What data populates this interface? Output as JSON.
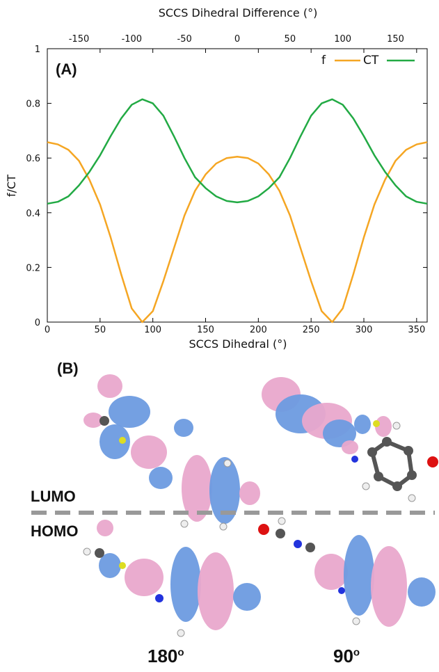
{
  "chart_data": {
    "type": "line",
    "panel_label": "(A)",
    "xlabel": "SCCS Dihedral (°)",
    "x2label": "SCCS Dihedral Difference (°)",
    "ylabel": "f/CT",
    "xlim": [
      0,
      360
    ],
    "x2lim": [
      -180,
      180
    ],
    "ylim": [
      0,
      1
    ],
    "xticks": [
      0,
      50,
      100,
      150,
      200,
      250,
      300,
      350
    ],
    "x2ticks": [
      -150,
      -100,
      -50,
      0,
      50,
      100,
      150
    ],
    "yticks": [
      0,
      0.2,
      0.4,
      0.6,
      0.8,
      1
    ],
    "ytick_labels": [
      "0",
      "0.2",
      "0.4",
      "0.6",
      "0.8",
      "1"
    ],
    "grid": false,
    "legend_position": "top-right",
    "series": [
      {
        "name": "f",
        "color": "#f5a623",
        "x": [
          0,
          10,
          20,
          30,
          40,
          50,
          60,
          70,
          80,
          90,
          100,
          110,
          120,
          130,
          140,
          150,
          160,
          170,
          180,
          190,
          200,
          210,
          220,
          230,
          240,
          250,
          260,
          270,
          280,
          290,
          300,
          310,
          320,
          330,
          340,
          350,
          360
        ],
        "y": [
          0.658,
          0.65,
          0.63,
          0.59,
          0.52,
          0.43,
          0.31,
          0.175,
          0.05,
          0.0,
          0.04,
          0.15,
          0.27,
          0.39,
          0.48,
          0.54,
          0.58,
          0.6,
          0.605,
          0.6,
          0.58,
          0.54,
          0.48,
          0.39,
          0.27,
          0.15,
          0.04,
          0.0,
          0.05,
          0.175,
          0.31,
          0.43,
          0.52,
          0.59,
          0.63,
          0.65,
          0.658
        ]
      },
      {
        "name": "CT",
        "color": "#22aa44",
        "x": [
          0,
          10,
          20,
          30,
          40,
          50,
          60,
          70,
          80,
          90,
          100,
          110,
          120,
          130,
          140,
          150,
          160,
          170,
          180,
          190,
          200,
          210,
          220,
          230,
          240,
          250,
          260,
          270,
          280,
          290,
          300,
          310,
          320,
          330,
          340,
          350,
          360
        ],
        "y": [
          0.433,
          0.44,
          0.46,
          0.5,
          0.55,
          0.61,
          0.68,
          0.745,
          0.795,
          0.815,
          0.8,
          0.755,
          0.68,
          0.6,
          0.53,
          0.49,
          0.46,
          0.443,
          0.438,
          0.443,
          0.46,
          0.49,
          0.53,
          0.6,
          0.68,
          0.755,
          0.8,
          0.815,
          0.795,
          0.745,
          0.68,
          0.61,
          0.55,
          0.5,
          0.46,
          0.44,
          0.433
        ]
      }
    ]
  },
  "panel_b": {
    "label": "(B)",
    "lumo_label": "LUMO",
    "homo_label": "HOMO",
    "angle_left": "180",
    "angle_right": "90",
    "angle_suffix": "o",
    "colors": {
      "positive_lobe": "#6d9be0",
      "negative_lobe": "#e9a8cc",
      "carbon": "#555555",
      "hydrogen": "#eeeeee",
      "nitrogen": "#2233dd",
      "oxygen": "#dd1111",
      "sulfur": "#dddd22",
      "divider": "#999999"
    }
  }
}
